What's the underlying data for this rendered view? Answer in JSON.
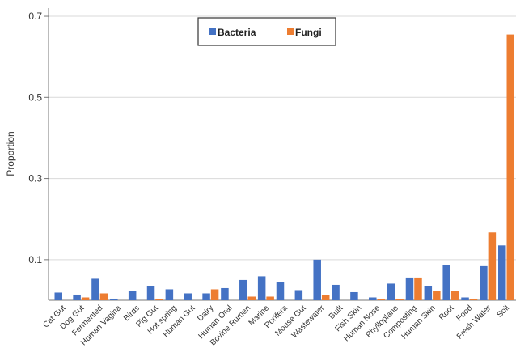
{
  "chart_data": {
    "type": "bar",
    "ylabel": "Proportion",
    "ylim": [
      0,
      0.72
    ],
    "yticks": [
      "0.1",
      "0.3",
      "0.5",
      "0.7"
    ],
    "grid": "horizontal",
    "legend": {
      "placement": "top-center",
      "entries": [
        "Bacteria",
        "Fungi"
      ]
    },
    "categories": [
      "Cat Gut",
      "Dog Gut",
      "Fermented",
      "Human Vagina",
      "Birds",
      "Pig Gut",
      "Hot spring",
      "Human Gut",
      "Dairy",
      "Human Oral",
      "Bovine Rumen",
      "Marine",
      "Porifera",
      "Mouse Gut",
      "Wastewater",
      "Built",
      "Fish Skin",
      "Human Nose",
      "Phylloplane",
      "Composting",
      "Human Skin",
      "Root",
      "Food",
      "Fresh Water",
      "Soil"
    ],
    "series": [
      {
        "name": "Bacteria",
        "color": "#4472c4",
        "values": [
          0.019,
          0.014,
          0.053,
          0.004,
          0.022,
          0.035,
          0.027,
          0.017,
          0.017,
          0.03,
          0.05,
          0.059,
          0.045,
          0.025,
          0.1,
          0.038,
          0.02,
          0.007,
          0.041,
          0.056,
          0.035,
          0.087,
          0.007,
          0.084,
          0.135
        ]
      },
      {
        "name": "Fungi",
        "color": "#ed7d31",
        "values": [
          0,
          0.007,
          0.017,
          0,
          0,
          0.004,
          0,
          0,
          0.027,
          0,
          0.009,
          0.009,
          0,
          0,
          0.012,
          0,
          0,
          0.004,
          0.004,
          0.056,
          0.022,
          0.022,
          0.004,
          0.167,
          0.655
        ]
      }
    ]
  }
}
